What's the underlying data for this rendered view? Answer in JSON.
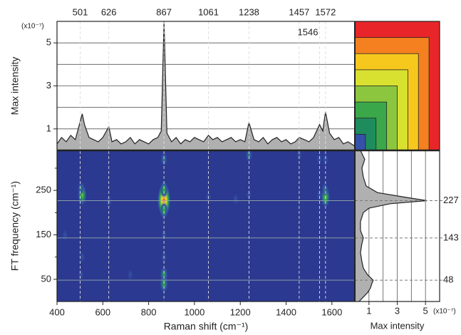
{
  "chart_data": [
    {
      "type": "area",
      "ylabel": "Max intensity",
      "multiplier": "(x10⁻⁷)",
      "color": "#b0b0b0",
      "xlim": [
        400,
        1700
      ],
      "ylim": [
        0,
        6
      ],
      "yticks": [
        1,
        3,
        5
      ],
      "ygrid": [
        1,
        2,
        3,
        4,
        5,
        6
      ],
      "peaks": [
        501,
        626,
        867,
        1061,
        1238,
        1457,
        1546,
        1572
      ],
      "x": [
        400,
        420,
        440,
        460,
        480,
        500,
        510,
        520,
        540,
        560,
        580,
        600,
        626,
        640,
        660,
        680,
        700,
        720,
        740,
        760,
        780,
        800,
        820,
        840,
        855,
        867,
        880,
        900,
        920,
        940,
        960,
        980,
        1000,
        1020,
        1040,
        1061,
        1080,
        1100,
        1120,
        1140,
        1160,
        1180,
        1200,
        1220,
        1238,
        1260,
        1280,
        1300,
        1320,
        1340,
        1360,
        1380,
        1400,
        1420,
        1440,
        1457,
        1480,
        1500,
        1520,
        1546,
        1560,
        1572,
        1590,
        1610,
        1630,
        1650,
        1670,
        1700
      ],
      "values": [
        0.3,
        0.6,
        0.4,
        0.7,
        0.5,
        1.3,
        1.7,
        1.2,
        0.6,
        0.5,
        0.4,
        0.6,
        1.1,
        0.4,
        0.5,
        0.3,
        0.4,
        0.6,
        0.3,
        0.5,
        0.4,
        0.3,
        0.5,
        0.6,
        0.9,
        6.0,
        0.8,
        0.4,
        0.6,
        0.3,
        0.5,
        0.4,
        0.6,
        0.5,
        0.4,
        0.7,
        0.5,
        0.6,
        0.4,
        0.5,
        0.6,
        0.4,
        0.5,
        0.4,
        1.3,
        0.5,
        0.4,
        0.6,
        0.3,
        0.5,
        0.6,
        0.4,
        0.5,
        0.3,
        0.4,
        0.6,
        0.5,
        0.4,
        0.6,
        1.2,
        0.9,
        1.8,
        0.8,
        0.5,
        0.6,
        0.3,
        0.4,
        0.2
      ]
    },
    {
      "type": "heatmap",
      "xlabel": "Raman shift (cm⁻¹)",
      "ylabel": "FT frequency (cm⁻¹)",
      "background": "#2b3990",
      "xlim": [
        400,
        1700
      ],
      "xticks": [
        400,
        600,
        800,
        1000,
        1200,
        1400,
        1600
      ],
      "ylim": [
        0,
        340
      ],
      "yticks": [
        50,
        150,
        250
      ],
      "yminor": [
        100,
        200,
        300
      ],
      "spots": [
        {
          "x": 867,
          "y": 228,
          "value": 6
        },
        {
          "x": 867,
          "y": 252,
          "value": 2.5
        },
        {
          "x": 867,
          "y": 205,
          "value": 2.5
        },
        {
          "x": 867,
          "y": 320,
          "value": 1.6
        },
        {
          "x": 867,
          "y": 60,
          "value": 2.3
        },
        {
          "x": 867,
          "y": 40,
          "value": 2.6
        },
        {
          "x": 867,
          "y": 100,
          "value": 1.2
        },
        {
          "x": 867,
          "y": 150,
          "value": 1
        },
        {
          "x": 510,
          "y": 240,
          "value": 3.2
        },
        {
          "x": 505,
          "y": 255,
          "value": 1.6
        },
        {
          "x": 510,
          "y": 100,
          "value": 1
        },
        {
          "x": 505,
          "y": 60,
          "value": 1
        },
        {
          "x": 1572,
          "y": 235,
          "value": 3.2
        },
        {
          "x": 1570,
          "y": 252,
          "value": 1.6
        },
        {
          "x": 1572,
          "y": 320,
          "value": 1.3
        },
        {
          "x": 1238,
          "y": 330,
          "value": 1.8
        },
        {
          "x": 1238,
          "y": 240,
          "value": 1
        },
        {
          "x": 1546,
          "y": 240,
          "value": 1.3
        },
        {
          "x": 1546,
          "y": 320,
          "value": 1.1
        },
        {
          "x": 626,
          "y": 225,
          "value": 1.1
        },
        {
          "x": 435,
          "y": 150,
          "value": 1
        },
        {
          "x": 720,
          "y": 60,
          "value": 1
        },
        {
          "x": 1180,
          "y": 230,
          "value": 1
        },
        {
          "x": 1457,
          "y": 330,
          "value": 1.1
        },
        {
          "x": 1061,
          "y": 235,
          "value": 1
        }
      ]
    },
    {
      "type": "side",
      "xlabel": "Max intensity",
      "multiplier": "(x10⁻⁷)",
      "color": "#b0b0b0",
      "xlim": [
        0,
        6
      ],
      "xticks": [
        1,
        3,
        5
      ],
      "xgrid": [
        1,
        2,
        3,
        4,
        5,
        6
      ],
      "ylim": [
        0,
        340
      ],
      "peaks": [
        227,
        143,
        48
      ],
      "y": [
        0,
        10,
        20,
        30,
        40,
        48,
        60,
        75,
        90,
        110,
        130,
        143,
        160,
        180,
        200,
        210,
        220,
        227,
        235,
        245,
        260,
        280,
        300,
        320,
        340
      ],
      "values": [
        0.3,
        0.6,
        0.9,
        1.1,
        1.2,
        1.3,
        0.9,
        0.6,
        0.5,
        0.4,
        0.5,
        0.6,
        0.4,
        0.4,
        0.6,
        1.0,
        2.5,
        5.1,
        3.5,
        1.6,
        0.8,
        0.6,
        0.5,
        0.7,
        0.4
      ],
      "levels": [
        {
          "value": 0.75,
          "color": "#3552a8"
        },
        {
          "value": 1.5,
          "color": "#1f8c5e"
        },
        {
          "value": 2.25,
          "color": "#3aa84a"
        },
        {
          "value": 3,
          "color": "#8cc63f"
        },
        {
          "value": 3.75,
          "color": "#d8e030"
        },
        {
          "value": 4.5,
          "color": "#f6c81e"
        },
        {
          "value": 5.25,
          "color": "#f4801f"
        },
        {
          "value": 6,
          "color": "#e8262a"
        }
      ]
    }
  ]
}
